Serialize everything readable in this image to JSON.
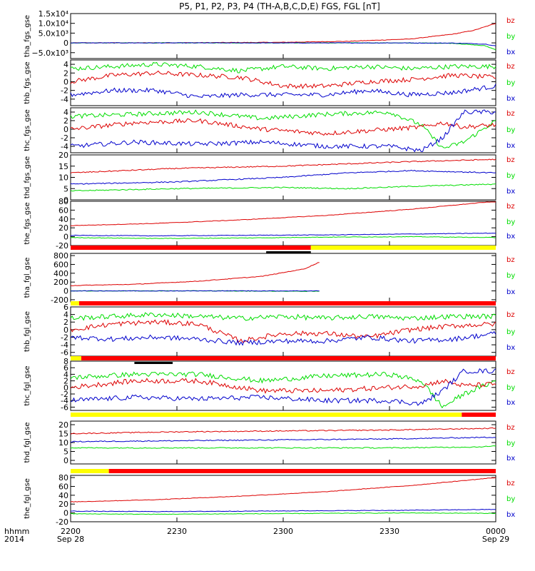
{
  "chart_data": {
    "type": "line",
    "title": "P5, P1, P2, P3, P4 (TH-A,B,C,D,E) FGS, FGL [nT]",
    "time_axis": {
      "label_line1": "hhmm",
      "label_line2": "2014",
      "ticks": [
        {
          "time": "2200",
          "date": "Sep 28"
        },
        {
          "time": "2230",
          "date": ""
        },
        {
          "time": "2300",
          "date": ""
        },
        {
          "time": "2330",
          "date": ""
        },
        {
          "time": "0000",
          "date": "Sep 29"
        }
      ],
      "range_hours": [
        0,
        2
      ]
    },
    "legend": [
      "bz",
      "by",
      "bx"
    ],
    "colors": {
      "bx": "#0000cc",
      "by": "#00dd00",
      "bz": "#dd0000",
      "bar_red": "#ff0000",
      "bar_yellow": "#ffff00",
      "bar_black": "#000000"
    },
    "panels": [
      {
        "ylabel": "tha_fgs_gse",
        "ylim": [
          -8000,
          15000
        ],
        "yticks": [
          "1.5x10⁴",
          "1.0x10⁴",
          "5.0x10³",
          "0",
          "−5.0x10³"
        ],
        "ytick_values": [
          15000,
          10000,
          5000,
          0,
          -5000
        ],
        "series": [
          {
            "name": "bz",
            "x": [
              0,
              0.5,
              1.0,
              1.3,
              1.6,
              1.8,
              1.9,
              2.0
            ],
            "values": [
              0,
              50,
              300,
              800,
              2000,
              4500,
              6500,
              10000
            ]
          },
          {
            "name": "by",
            "x": [
              0,
              1.5,
              1.8,
              1.95,
              2.0
            ],
            "values": [
              0,
              0,
              -200,
              -1500,
              -3500
            ]
          },
          {
            "name": "bx",
            "x": [
              0,
              1.5,
              1.8,
              1.95,
              2.0
            ],
            "values": [
              0,
              0,
              -100,
              -600,
              -1500
            ]
          }
        ]
      },
      {
        "ylabel": "thb_fgs_gse",
        "ylim": [
          -5.5,
          5
        ],
        "yticks": [
          "4",
          "2",
          "0",
          "-2",
          "-4"
        ],
        "ytick_values": [
          4,
          2,
          0,
          -2,
          -4
        ],
        "series": [
          {
            "name": "by",
            "x": [
              0,
              0.2,
              0.4,
              0.6,
              0.8,
              1.0,
              1.2,
              1.4,
              1.6,
              1.8,
              2.0
            ],
            "values": [
              3,
              3.5,
              4,
              3.5,
              2.5,
              3.5,
              3,
              3.5,
              3,
              3.5,
              3.5
            ]
          },
          {
            "name": "bz",
            "x": [
              0,
              0.2,
              0.4,
              0.6,
              0.8,
              1.0,
              1.2,
              1.4,
              1.6,
              1.8,
              2.0
            ],
            "values": [
              0,
              1.5,
              2,
              1.5,
              1,
              -1,
              -1,
              0,
              0.5,
              1.5,
              1
            ]
          },
          {
            "name": "bx",
            "x": [
              0,
              0.2,
              0.4,
              0.6,
              0.8,
              1.0,
              1.2,
              1.4,
              1.6,
              1.8,
              2.0
            ],
            "values": [
              -3,
              -2,
              -2,
              -3.5,
              -3,
              -3,
              -3,
              -2,
              -3,
              -2.5,
              -1
            ]
          }
        ]
      },
      {
        "ylabel": "thc_fgs_gse",
        "ylim": [
          -5.5,
          5
        ],
        "yticks": [
          "4",
          "2",
          "0",
          "-2",
          "-4"
        ],
        "ytick_values": [
          4,
          2,
          0,
          -2,
          -4
        ],
        "series": [
          {
            "name": "by",
            "x": [
              0,
              0.3,
              0.6,
              0.9,
              1.2,
              1.5,
              1.65,
              1.75,
              1.85,
              2.0
            ],
            "values": [
              3,
              3.5,
              4,
              2.5,
              3.5,
              4,
              1,
              -4.5,
              -3,
              2
            ]
          },
          {
            "name": "bz",
            "x": [
              0,
              0.3,
              0.6,
              0.9,
              1.2,
              1.5,
              1.65,
              1.75,
              1.85,
              2.0
            ],
            "values": [
              0,
              1.5,
              2,
              0,
              -1,
              0,
              0.5,
              1.5,
              0.5,
              1
            ]
          },
          {
            "name": "bx",
            "x": [
              0,
              0.3,
              0.6,
              0.9,
              1.2,
              1.5,
              1.65,
              1.75,
              1.85,
              2.0
            ],
            "values": [
              -4,
              -3,
              -3.5,
              -3,
              -4,
              -4,
              -5,
              -2,
              4,
              4
            ]
          }
        ]
      },
      {
        "ylabel": "thd_fgs_gse",
        "ylim": [
          0,
          20
        ],
        "yticks": [
          "20",
          "15",
          "10",
          "5",
          "0"
        ],
        "ytick_values": [
          20,
          15,
          10,
          5,
          0
        ],
        "series": [
          {
            "name": "bz",
            "x": [
              0,
              0.5,
              1.0,
              1.3,
              1.6,
              2.0
            ],
            "values": [
              12,
              14,
              15,
              16,
              17,
              18
            ]
          },
          {
            "name": "bx",
            "x": [
              0,
              0.5,
              1.0,
              1.3,
              1.6,
              2.0
            ],
            "values": [
              7,
              8,
              10,
              12,
              13,
              12
            ]
          },
          {
            "name": "by",
            "x": [
              0,
              0.5,
              1.0,
              1.3,
              1.6,
              2.0
            ],
            "values": [
              4,
              5,
              5.5,
              5,
              6,
              7
            ]
          }
        ]
      },
      {
        "ylabel": "the_fgs_gse",
        "ylim": [
          -20,
          80
        ],
        "yticks": [
          "80",
          "60",
          "40",
          "20",
          "0",
          "-20"
        ],
        "ytick_values": [
          80,
          60,
          40,
          20,
          0,
          -20
        ],
        "series": [
          {
            "name": "bz",
            "x": [
              0,
              0.4,
              0.8,
              1.2,
              1.6,
              2.0
            ],
            "values": [
              25,
              30,
              38,
              48,
              62,
              80
            ]
          },
          {
            "name": "bx",
            "x": [
              0,
              0.4,
              0.8,
              1.2,
              1.6,
              2.0
            ],
            "values": [
              3,
              2,
              3,
              4,
              6,
              8
            ]
          },
          {
            "name": "by",
            "x": [
              0,
              0.4,
              0.8,
              1.2,
              1.6,
              2.0
            ],
            "values": [
              -2,
              -4,
              -3,
              -1,
              0,
              -2
            ]
          }
        ]
      },
      {
        "ylabel": "tha_fgl_gse",
        "ylim": [
          -250,
          850
        ],
        "yticks": [
          "800",
          "600",
          "400",
          "200",
          "0",
          "-200"
        ],
        "ytick_values": [
          800,
          600,
          400,
          200,
          0,
          -200
        ],
        "series": [
          {
            "name": "bz",
            "x": [
              0,
              0.3,
              0.6,
              0.9,
              1.1,
              1.17
            ],
            "values": [
              120,
              150,
              220,
              330,
              500,
              650
            ]
          },
          {
            "name": "by",
            "x": [
              0,
              0.6,
              1.17
            ],
            "values": [
              0,
              0,
              -10
            ]
          },
          {
            "name": "bx",
            "x": [
              0,
              0.6,
              1.17
            ],
            "values": [
              0,
              0,
              0
            ]
          }
        ]
      },
      {
        "ylabel": "thb_fgl_gse",
        "ylim": [
          -7,
          6
        ],
        "yticks": [
          "6",
          "4",
          "2",
          "0",
          "-2",
          "-4",
          "-6"
        ],
        "ytick_values": [
          6,
          4,
          2,
          0,
          -2,
          -4,
          -6
        ],
        "series": [
          {
            "name": "by",
            "x": [
              0,
              0.2,
              0.4,
              0.6,
              0.8,
              1.0,
              1.2,
              1.4,
              1.6,
              1.8,
              2.0
            ],
            "values": [
              3,
              3.5,
              4,
              3.5,
              3,
              3.5,
              3,
              3.5,
              3,
              3.5,
              3.5
            ]
          },
          {
            "name": "bz",
            "x": [
              0,
              0.2,
              0.4,
              0.6,
              0.8,
              1.0,
              1.2,
              1.4,
              1.6,
              1.8,
              2.0
            ],
            "values": [
              0,
              1.5,
              2,
              1.5,
              -3,
              -1,
              -1,
              -2,
              0,
              1,
              1.5
            ]
          },
          {
            "name": "bx",
            "x": [
              0,
              0.2,
              0.4,
              0.6,
              0.8,
              1.0,
              1.2,
              1.4,
              1.6,
              1.8,
              2.0
            ],
            "values": [
              -2,
              -2.5,
              -2,
              -2.5,
              -3.5,
              -3,
              -3,
              -2,
              -3,
              -2.5,
              -1
            ]
          }
        ]
      },
      {
        "ylabel": "thc_fgl_gse",
        "ylim": [
          -7,
          8
        ],
        "yticks": [
          "8",
          "6",
          "4",
          "2",
          "0",
          "-2",
          "-4",
          "-6"
        ],
        "ytick_values": [
          8,
          6,
          4,
          2,
          0,
          -2,
          -4,
          -6
        ],
        "series": [
          {
            "name": "by",
            "x": [
              0,
              0.3,
              0.6,
              0.9,
              1.2,
              1.5,
              1.65,
              1.75,
              1.85,
              2.0
            ],
            "values": [
              3,
              4,
              4,
              2,
              3.5,
              4,
              2,
              -6,
              -2,
              2
            ]
          },
          {
            "name": "bz",
            "x": [
              0,
              0.3,
              0.6,
              0.9,
              1.2,
              1.5,
              1.65,
              1.75,
              1.85,
              2.0
            ],
            "values": [
              0,
              2,
              2,
              -1,
              -1,
              0,
              0.5,
              2,
              0.5,
              1
            ]
          },
          {
            "name": "bx",
            "x": [
              0,
              0.3,
              0.6,
              0.9,
              1.2,
              1.5,
              1.65,
              1.75,
              1.85,
              2.0
            ],
            "values": [
              -4,
              -3,
              -3.5,
              -3,
              -4,
              -4,
              -5,
              -1,
              5,
              5
            ]
          }
        ]
      },
      {
        "ylabel": "thd_fgl_gse",
        "ylim": [
          -2,
          22
        ],
        "yticks": [
          "20",
          "15",
          "10",
          "5",
          "0"
        ],
        "ytick_values": [
          20,
          15,
          10,
          5,
          0
        ],
        "series": [
          {
            "name": "bz",
            "x": [
              0,
              0.5,
              1.0,
              1.5,
              2.0
            ],
            "values": [
              15,
              16,
              16.5,
              17,
              18
            ]
          },
          {
            "name": "bx",
            "x": [
              0,
              0.5,
              1.0,
              1.5,
              2.0
            ],
            "values": [
              10.5,
              11,
              11.5,
              12,
              13
            ]
          },
          {
            "name": "by",
            "x": [
              0,
              0.5,
              1.0,
              1.5,
              1.9,
              2.0
            ],
            "values": [
              7,
              7,
              7,
              7,
              7.5,
              8
            ]
          }
        ]
      },
      {
        "ylabel": "the_fgl_gse",
        "ylim": [
          -20,
          85
        ],
        "yticks": [
          "80",
          "60",
          "40",
          "20",
          "0",
          "-20"
        ],
        "ytick_values": [
          80,
          60,
          40,
          20,
          0,
          -20
        ],
        "series": [
          {
            "name": "bz",
            "x": [
              0,
              0.4,
              0.8,
              1.2,
              1.6,
              2.0
            ],
            "values": [
              25,
              30,
              38,
              48,
              62,
              80
            ]
          },
          {
            "name": "bx",
            "x": [
              0,
              0.4,
              0.8,
              1.2,
              1.6,
              2.0
            ],
            "values": [
              4,
              3,
              4,
              5,
              6,
              8
            ]
          },
          {
            "name": "by",
            "x": [
              0,
              0.4,
              0.8,
              1.2,
              1.6,
              2.0
            ],
            "values": [
              -2,
              -3,
              -2,
              -1,
              0,
              -1
            ]
          }
        ]
      }
    ],
    "mode_bars": [
      {
        "after_panel": 4,
        "segments": [
          {
            "from": 0,
            "to": 1.13,
            "color": "red"
          },
          {
            "from": 1.13,
            "to": 2.0,
            "color": "yellow"
          }
        ],
        "marker": {
          "from": 0.92,
          "to": 1.13
        }
      },
      {
        "after_panel": 5,
        "segments": [
          {
            "from": 0,
            "to": 0.04,
            "color": "yellow"
          },
          {
            "from": 0.04,
            "to": 2.0,
            "color": "red"
          }
        ]
      },
      {
        "after_panel": 6,
        "segments": [
          {
            "from": 0,
            "to": 0.05,
            "color": "yellow"
          },
          {
            "from": 0.05,
            "to": 2.0,
            "color": "red"
          }
        ],
        "marker": {
          "from": 0.3,
          "to": 0.48
        }
      },
      {
        "after_panel": 7,
        "segments": [
          {
            "from": 0,
            "to": 1.84,
            "color": "yellow"
          },
          {
            "from": 1.84,
            "to": 2.0,
            "color": "red"
          }
        ]
      },
      {
        "after_panel": 8,
        "segments": [
          {
            "from": 0,
            "to": 0.18,
            "color": "yellow"
          },
          {
            "from": 0.18,
            "to": 2.0,
            "color": "red"
          }
        ]
      }
    ]
  }
}
